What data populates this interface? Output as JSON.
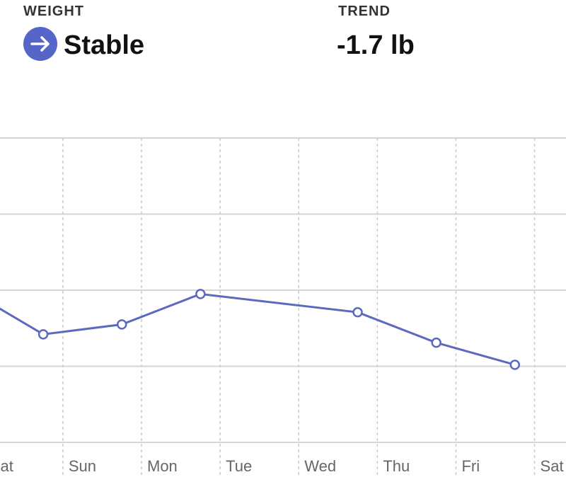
{
  "header": {
    "weight_label": "WEIGHT",
    "weight_status": "Stable",
    "trend_label": "TREND",
    "trend_value": "-1.7 lb"
  },
  "chart_data": {
    "type": "line",
    "x": [
      -0.25,
      0.75,
      1.75,
      2.75,
      4.75,
      5.75,
      6.75
    ],
    "series": [
      {
        "color": "#5b6abf",
        "values": [
          2.03,
          1.42,
          1.55,
          1.95,
          1.71,
          1.31,
          1.02
        ]
      }
    ],
    "xlim": [
      0.2,
      7.4
    ],
    "xticks": [
      {
        "value": 0,
        "label": "Sat"
      },
      {
        "value": 1,
        "label": "Sun"
      },
      {
        "value": 2,
        "label": "Mon"
      },
      {
        "value": 3,
        "label": "Tue"
      },
      {
        "value": 4,
        "label": "Wed"
      },
      {
        "value": 5,
        "label": "Thu"
      },
      {
        "value": 6,
        "label": "Fri"
      },
      {
        "value": 7,
        "label": "Sat"
      }
    ],
    "ylim": [
      0,
      4
    ],
    "yticks": [
      0,
      1,
      2,
      3,
      4
    ],
    "grid": true
  }
}
